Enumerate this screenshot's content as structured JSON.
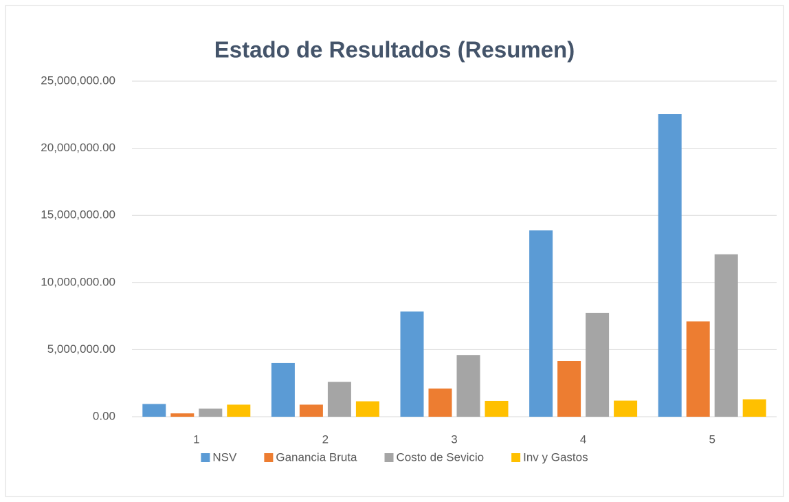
{
  "chart_data": {
    "type": "bar",
    "title": "Estado de Resultados (Resumen)",
    "categories": [
      "1",
      "2",
      "3",
      "4",
      "5"
    ],
    "series": [
      {
        "name": "NSV",
        "color": "#5b9bd5",
        "values": [
          950000,
          4000000,
          7840000,
          13880000,
          22540000
        ]
      },
      {
        "name": "Ganancia Bruta",
        "color": "#ed7d31",
        "values": [
          250000,
          900000,
          2100000,
          4150000,
          7100000
        ]
      },
      {
        "name": "Costo de Sevicio",
        "color": "#a5a5a5",
        "values": [
          600000,
          2600000,
          4600000,
          7740000,
          12100000
        ]
      },
      {
        "name": "Inv y Gastos",
        "color": "#ffc000",
        "values": [
          900000,
          1150000,
          1180000,
          1200000,
          1300000
        ]
      }
    ],
    "ylim": [
      0,
      25000000
    ],
    "yticks": [
      {
        "value": 0,
        "label": "0.00"
      },
      {
        "value": 5000000,
        "label": "5,000,000.00"
      },
      {
        "value": 10000000,
        "label": "10,000,000.00"
      },
      {
        "value": 15000000,
        "label": "15,000,000.00"
      },
      {
        "value": 20000000,
        "label": "20,000,000.00"
      },
      {
        "value": 25000000,
        "label": "25,000,000.00"
      }
    ],
    "grid": true,
    "legend": "bottom"
  }
}
